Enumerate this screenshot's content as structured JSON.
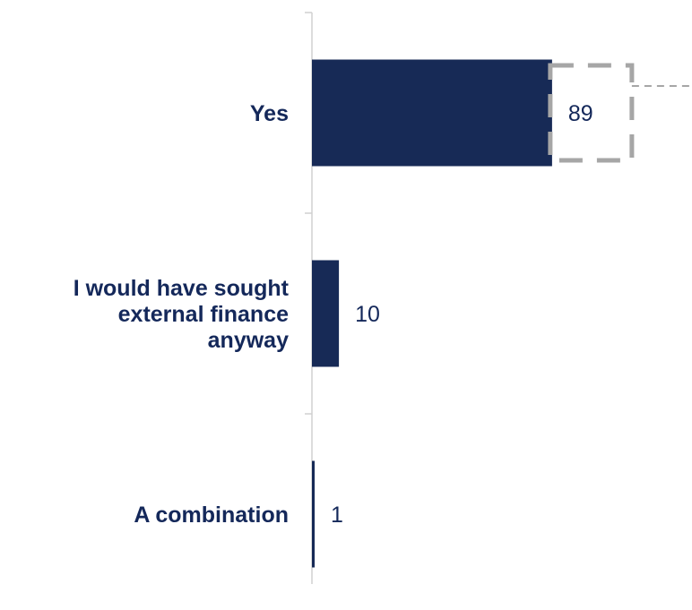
{
  "chart_data": {
    "type": "bar",
    "orientation": "horizontal",
    "categories": [
      [
        "Yes"
      ],
      [
        "I would have sought",
        "external finance",
        "anyway"
      ],
      [
        "A combination"
      ]
    ],
    "values": [
      89,
      10,
      1
    ],
    "data_labels": [
      "89",
      "10",
      "1"
    ],
    "xlim": [
      0,
      100
    ],
    "title": "",
    "xlabel": "",
    "ylabel": "",
    "grid": false,
    "legend": "none",
    "colors": {
      "bar": "#172a56",
      "text": "#14285a",
      "axis": "#d0d0d0",
      "highlight": "#a6a6a6"
    },
    "highlight": {
      "category_index": 0,
      "style": "dashed-box-with-leader"
    }
  }
}
